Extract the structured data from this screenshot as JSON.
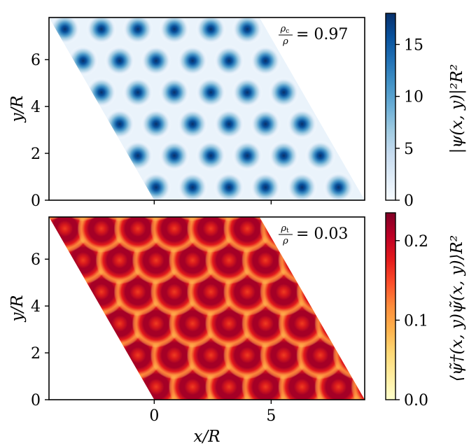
{
  "chart_data": [
    {
      "type": "heatmap",
      "title": "",
      "xlabel": "",
      "ylabel": "y/R",
      "xlim": [
        -4.5,
        9
      ],
      "ylim": [
        0,
        7.8
      ],
      "xticks": [
        0,
        5
      ],
      "xtick_labels": [
        "",
        ""
      ],
      "yticks": [
        0,
        2,
        4,
        6
      ],
      "ytick_labels": [
        "0",
        "2",
        "4",
        "6"
      ],
      "domain": "parallelogram",
      "domain_vertices": [
        [
          0,
          0
        ],
        [
          9,
          0
        ],
        [
          4.5,
          7.8
        ],
        [
          -4.5,
          7.8
        ]
      ],
      "lattice": "triangular",
      "lattice_spacing": 1.56,
      "pattern": "peaks",
      "annotation": {
        "numerator": "ρ",
        "num_sub": "c",
        "denominator": "ρ",
        "value": "= 0.97"
      },
      "colormap": "Blues",
      "colorbar": {
        "label": "|ψ(x, y)|²R²",
        "range": [
          0,
          18
        ],
        "ticks": [
          0,
          5,
          10,
          15
        ],
        "tick_labels": [
          "0",
          "5",
          "10",
          "15"
        ]
      }
    },
    {
      "type": "heatmap",
      "title": "",
      "xlabel": "x/R",
      "ylabel": "y/R",
      "xlim": [
        -4.5,
        9
      ],
      "ylim": [
        0,
        7.8
      ],
      "xticks": [
        0,
        5
      ],
      "xtick_labels": [
        "0",
        "5"
      ],
      "yticks": [
        0,
        2,
        4,
        6
      ],
      "ytick_labels": [
        "0",
        "2",
        "4",
        "6"
      ],
      "domain": "parallelogram",
      "domain_vertices": [
        [
          0,
          0
        ],
        [
          9,
          0
        ],
        [
          4.5,
          7.8
        ],
        [
          -4.5,
          7.8
        ]
      ],
      "lattice": "triangular",
      "lattice_spacing": 1.56,
      "pattern": "rings",
      "annotation": {
        "numerator": "ρ",
        "num_sub": "t",
        "denominator": "ρ",
        "value": "= 0.03"
      },
      "colormap": "YlOrRd",
      "colorbar": {
        "label": "⟨ψ̃†(x, y)ψ̃(x, y)⟩R²",
        "range": [
          0,
          0.235
        ],
        "ticks": [
          0,
          0.1,
          0.2
        ],
        "tick_labels": [
          "0.0",
          "0.1",
          "0.2"
        ]
      }
    }
  ]
}
